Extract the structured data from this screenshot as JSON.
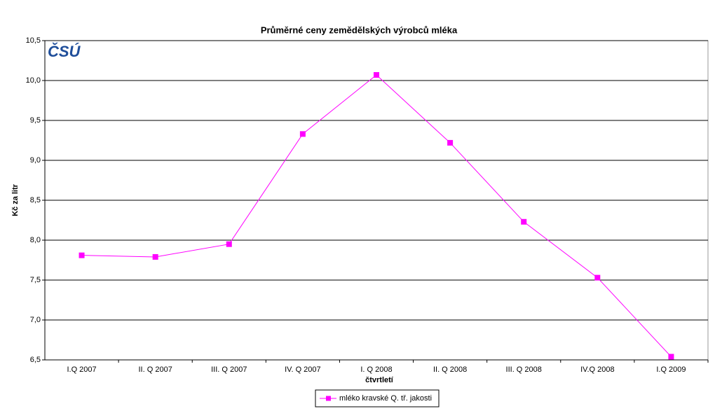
{
  "chart_data": {
    "type": "line",
    "title": "Průměrné ceny zemědělských výrobců mléka",
    "logo": "ČSÚ",
    "x_label": "čtvrtletí",
    "y_label": "Kč za litr",
    "categories": [
      "I.Q 2007",
      "II. Q 2007",
      "III. Q 2007",
      "IV. Q 2007",
      "I. Q 2008",
      "II. Q 2008",
      "III. Q 2008",
      "IV.Q 2008",
      "I.Q 2009"
    ],
    "series": [
      {
        "name": "mléko kravské Q. tř. jakosti",
        "color": "#ff00ff",
        "values": [
          7.81,
          7.79,
          7.95,
          9.33,
          10.07,
          9.22,
          8.23,
          7.53,
          6.54
        ]
      }
    ],
    "ylim": [
      6.5,
      10.5
    ],
    "yticks": [
      {
        "value": 6.5,
        "label": "6,5"
      },
      {
        "value": 7,
        "label": "7,0"
      },
      {
        "value": 7.5,
        "label": "7,5"
      },
      {
        "value": 8,
        "label": "8,0"
      },
      {
        "value": 8.5,
        "label": "8,5"
      },
      {
        "value": 9,
        "label": "9,0"
      },
      {
        "value": 9.5,
        "label": "9,5"
      },
      {
        "value": 10,
        "label": "10,0"
      },
      {
        "value": 10.5,
        "label": "10,5"
      }
    ],
    "grid": true,
    "legend": "bottom"
  }
}
